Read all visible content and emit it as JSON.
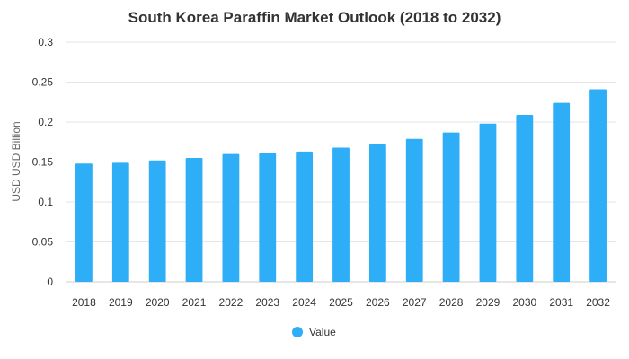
{
  "chart_data": {
    "type": "bar",
    "title": "South Korea Paraffin Market Outlook (2018 to 2032)",
    "xlabel": "",
    "ylabel": "USD USD Billion",
    "categories": [
      "2018",
      "2019",
      "2020",
      "2021",
      "2022",
      "2023",
      "2024",
      "2025",
      "2026",
      "2027",
      "2028",
      "2029",
      "2030",
      "2031",
      "2032"
    ],
    "series": [
      {
        "name": "Value",
        "values": [
          0.148,
          0.149,
          0.152,
          0.155,
          0.16,
          0.161,
          0.163,
          0.168,
          0.172,
          0.179,
          0.187,
          0.198,
          0.209,
          0.224,
          0.241
        ]
      }
    ],
    "ylim": [
      0,
      0.3
    ],
    "yticks": [
      "0",
      "0.05",
      "0.1",
      "0.15",
      "0.2",
      "0.25",
      "0.3"
    ],
    "ytick_values": [
      0,
      0.05,
      0.1,
      0.15,
      0.2,
      0.25,
      0.3
    ],
    "grid": true,
    "legend_position": "bottom-center",
    "colors": {
      "bar": "#2eaef7",
      "grid": "#e6e6e6",
      "text": "#333333"
    }
  }
}
